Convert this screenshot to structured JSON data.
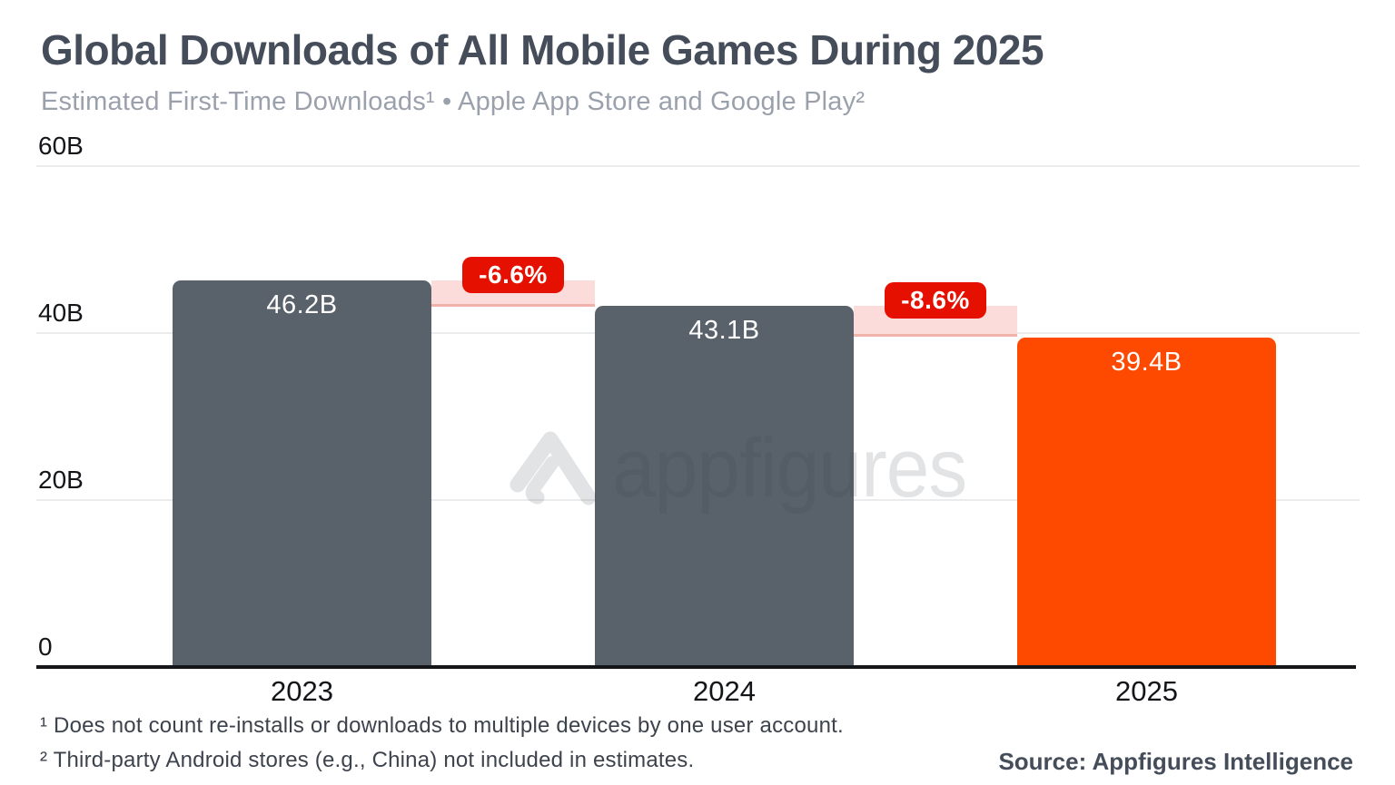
{
  "header": {
    "title": "Global Downloads of All Mobile Games During 2025",
    "subtitle": "Estimated First-Time Downloads¹ • Apple App Store and Google Play²"
  },
  "chart_data": {
    "type": "bar",
    "title": "Global Downloads of All Mobile Games During 2025",
    "subtitle": "Estimated First-Time Downloads • Apple App Store and Google Play",
    "categories": [
      "2023",
      "2024",
      "2025"
    ],
    "values": [
      46.2,
      43.1,
      39.4
    ],
    "value_labels": [
      "46.2B",
      "43.1B",
      "39.4B"
    ],
    "unit": "billions of downloads",
    "bar_colors": [
      "#59616b",
      "#59616b",
      "#fe4901"
    ],
    "changes": [
      {
        "label": "-6.6%",
        "from": "2023",
        "to": "2024"
      },
      {
        "label": "-8.6%",
        "from": "2024",
        "to": "2025"
      }
    ],
    "y_ticks": [
      {
        "label": "0",
        "value": 0
      },
      {
        "label": "20B",
        "value": 20
      },
      {
        "label": "40B",
        "value": 40
      },
      {
        "label": "60B",
        "value": 60
      }
    ],
    "ylim": [
      0,
      60
    ],
    "xlabel": "",
    "ylabel": "",
    "grid": "horizontal",
    "legend": "none"
  },
  "watermark": {
    "text": "appfigures",
    "logo": "appfigures-logo"
  },
  "footnotes": [
    "¹ Does not count re-installs or downloads to multiple devices by one user account.",
    "² Third-party Android stores (e.g., China) not included in estimates."
  ],
  "source": "Source: Appfigures Intelligence",
  "colors": {
    "bar_gray": "#59616b",
    "bar_orange": "#fe4901",
    "badge_red": "#e61000",
    "band_pink": "#fcdcda",
    "band_edge": "#f2b2ac",
    "gridline": "#eaebed",
    "axis": "#15161a",
    "title_text": "#454d5a",
    "subtitle_text": "#9aa1ac"
  }
}
